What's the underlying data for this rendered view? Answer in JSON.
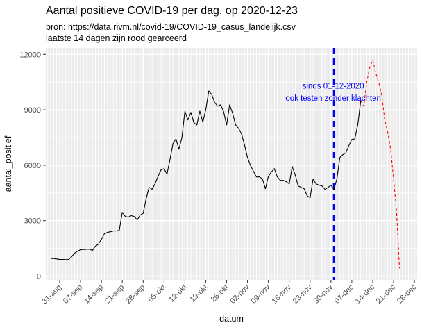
{
  "header": {
    "title": "Aantal positieve COVID-19 per dag, op 2020-12-23",
    "subtitle_source": "bron: https://data.rivm.nl/covid-19/COVID-19_casus_landelijk.csv",
    "subtitle_note": "laatste 14 dagen zijn rood gearceerd"
  },
  "chart_data": {
    "type": "line",
    "title": "Aantal positieve COVID-19 per dag, op 2020-12-23",
    "xlabel": "datum",
    "ylabel": "aantal_positief",
    "ylim": [
      0,
      12000
    ],
    "y_ticks": [
      0,
      3000,
      6000,
      9000,
      12000
    ],
    "y_minor_ticks": [
      1500,
      4500,
      7500,
      10500
    ],
    "grid": "on",
    "x_start_date": "2020-08-28",
    "x_ticks": [
      {
        "label": "31-aug",
        "day_index": 3
      },
      {
        "label": "07-sep",
        "day_index": 10
      },
      {
        "label": "14-sep",
        "day_index": 17
      },
      {
        "label": "21-sep",
        "day_index": 24
      },
      {
        "label": "28-sep",
        "day_index": 31
      },
      {
        "label": "05-okt",
        "day_index": 38
      },
      {
        "label": "12-okt",
        "day_index": 45
      },
      {
        "label": "19-okt",
        "day_index": 52
      },
      {
        "label": "26-okt",
        "day_index": 59
      },
      {
        "label": "02-nov",
        "day_index": 66
      },
      {
        "label": "09-nov",
        "day_index": 73
      },
      {
        "label": "16-nov",
        "day_index": 80
      },
      {
        "label": "23-nov",
        "day_index": 87
      },
      {
        "label": "30-nov",
        "day_index": 94
      },
      {
        "label": "07-dec",
        "day_index": 101
      },
      {
        "label": "14-dec",
        "day_index": 108
      },
      {
        "label": "21-dec",
        "day_index": 115
      },
      {
        "label": "28-dec",
        "day_index": 122
      }
    ],
    "series": [
      {
        "name": "aantal_positief",
        "color": "#000000",
        "style": "solid",
        "start_index": 0,
        "start_date": "2020-08-28",
        "values": [
          950,
          950,
          930,
          900,
          900,
          890,
          900,
          1050,
          1240,
          1350,
          1430,
          1440,
          1450,
          1460,
          1390,
          1615,
          1730,
          1990,
          2290,
          2365,
          2400,
          2440,
          2440,
          2480,
          3450,
          3230,
          3190,
          3270,
          3230,
          3040,
          3300,
          3400,
          4200,
          4800,
          4700,
          5000,
          5400,
          5750,
          5820,
          5520,
          6310,
          7170,
          7430,
          6870,
          7500,
          8930,
          8450,
          8860,
          8300,
          8180,
          8930,
          8330,
          9010,
          10020,
          9840,
          9390,
          9200,
          9270,
          8900,
          8180,
          9270,
          8820,
          8180,
          8000,
          7700,
          7100,
          6420,
          5990,
          5670,
          5370,
          5370,
          5260,
          4730,
          5400,
          5630,
          5820,
          5370,
          5180,
          5180,
          5110,
          4990,
          5930,
          5480,
          4880,
          4800,
          4730,
          4350,
          4240,
          5260,
          4990,
          4920,
          4880,
          4690,
          4800,
          4920,
          4690,
          5260,
          6420,
          6570,
          6680,
          7060,
          7400,
          7430,
          8200,
          9500
        ]
      },
      {
        "name": "laatste 14 dagen (rood)",
        "color": "#FF0000",
        "style": "dashed",
        "start_index": 104,
        "start_date": "2020-12-10",
        "values": [
          9500,
          9200,
          10500,
          11300,
          11700,
          11000,
          10500,
          9800,
          8500,
          7800,
          6900,
          5300,
          3500,
          420
        ]
      }
    ],
    "vline": {
      "date": "01-12-2020",
      "day_index": 95,
      "color": "#0000FF",
      "style": "dashed"
    },
    "annotation": {
      "line1": "sinds 01-12-2020",
      "line2": "ook testen zonder klachten",
      "color": "#0000FF",
      "anchor_values": [
        10300,
        9650
      ]
    },
    "colors": {
      "panel_bg": "#EBEBEB",
      "grid": "#FFFFFF",
      "tick_label": "#4D4D4D",
      "axis_title": "#000000",
      "tick_mark": "#333333"
    }
  }
}
